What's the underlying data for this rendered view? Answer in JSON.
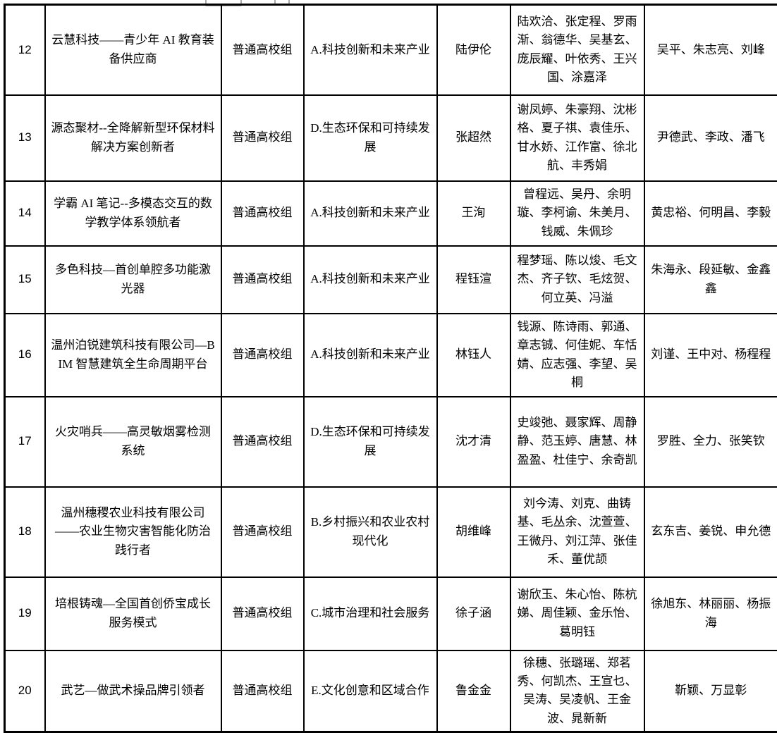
{
  "table": {
    "rows": [
      {
        "no": "12",
        "project": "云慧科技——青少年 AI 教育装备供应商",
        "group": "普通高校组",
        "category": "A.科技创新和未来产业",
        "leader": "陆伊伦",
        "members": "陆欢洽、张定程、罗雨渐、翁德华、吴基玄、庞辰耀、叶依秀、王兴国、涂嘉泽",
        "advisors": "吴平、朱志亮、刘峰"
      },
      {
        "no": "13",
        "project": "源态聚材--全降解新型环保材料解决方案创新者",
        "group": "普通高校组",
        "category": "D.生态环保和可持续发展",
        "leader": "张超然",
        "members": "谢凤婷、朱豪翔、沈彬格、夏子祺、袁佳乐、甘水娇、江作富、徐北航、丰秀娟",
        "advisors": "尹德武、李政、潘飞"
      },
      {
        "no": "14",
        "project": "学霸 AI 笔记--多模态交互的数学教学体系领航者",
        "group": "普通高校组",
        "category": "A.科技创新和未来产业",
        "leader": "王洵",
        "members": "曾程远、吴丹、余明璇、李柯谕、朱美月、钱威、朱佩珍",
        "advisors": "黄忠裕、何明昌、李毅"
      },
      {
        "no": "15",
        "project": "多色科技—首创单腔多功能激光器",
        "group": "普通高校组",
        "category": "A.科技创新和未来产业",
        "leader": "程钰渲",
        "members": "程梦瑶、陈以焌、毛文杰、齐子钦、毛炫贺、何立英、冯溢",
        "advisors": "朱海永、段延敏、金鑫鑫"
      },
      {
        "no": "16",
        "project": "温州泊锐建筑科技有限公司—BIM 智慧建筑全生命周期平台",
        "group": "普通高校组",
        "category": "A.科技创新和未来产业",
        "leader": "林钰人",
        "members": "钱源、陈诗雨、郭通、章志铖、何佳妮、车恬婧、应志强、李望、吴桐",
        "advisors": "刘谨、王中对、杨程程"
      },
      {
        "no": "17",
        "project": "火灾哨兵——高灵敏烟雾检测系统",
        "group": "普通高校组",
        "category": "D.生态环保和可持续发展",
        "leader": "沈才清",
        "members": "史竣弛、聂家辉、周静静、范玉婷、唐慧、林盈盈、杜佳宁、余奇凯",
        "advisors": "罗胜、全力、张笑钦"
      },
      {
        "no": "18",
        "project": "温州穗稷农业科技有限公司——农业生物灾害智能化防治践行者",
        "group": "普通高校组",
        "category": "B.乡村振兴和农业农村现代化",
        "leader": "胡维峰",
        "members": "刘今涛、刘克、曲铸基、毛丛余、沈萱萱、王微丹、刘江萍、张佳禾、董优颉",
        "advisors": "玄东吉、姜锐、申允德"
      },
      {
        "no": "19",
        "project": "培根铸魂—全国首创侨宝成长服务模式",
        "group": "普通高校组",
        "category": "C.城市治理和社会服务",
        "leader": "徐子涵",
        "members": "谢欣玉、朱心怡、陈杭娣、周佳颖、金乐怡、葛明钰",
        "advisors": "徐旭东、林丽丽、杨振海"
      },
      {
        "no": "20",
        "project": "武艺—做武术操品牌引领者",
        "group": "普通高校组",
        "category": "E.文化创意和区域合作",
        "leader": "鲁金金",
        "members": "徐穗、张璐瑶、郑茗秀、何凯杰、王宣乜、吴涛、吴凌帆、王金波、晁新新",
        "advisors": "靳颖、万显彰"
      }
    ]
  }
}
